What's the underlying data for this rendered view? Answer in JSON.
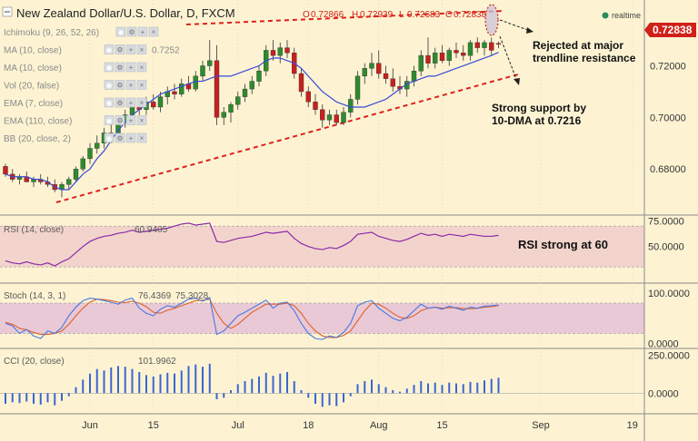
{
  "title": "New Zealand Dollar/U.S. Dollar, D, FXCM",
  "ohlc": {
    "o_label": "O",
    "o": "0.72866",
    "h_label": "H",
    "h": "0.72939",
    "l_label": "L",
    "l": "0.72683",
    "c_label": "C",
    "c": "0.72838"
  },
  "realtime_label": "realtime",
  "last_price": "0.72838",
  "indicator_rows": [
    {
      "label": "Ichimoku (9, 26, 52, 26)",
      "value": ""
    },
    {
      "label": "MA (10, close)",
      "value": "0.7252"
    },
    {
      "label": "MA (10, close)",
      "value": ""
    },
    {
      "label": "Vol (20, false)",
      "value": ""
    },
    {
      "label": "EMA (7, close)",
      "value": ""
    },
    {
      "label": "EMA (110, close)",
      "value": ""
    },
    {
      "label": "BB (20, close, 2)",
      "value": ""
    }
  ],
  "annotations": {
    "resistance": [
      "Rejected at major",
      "trendline resistance"
    ],
    "support": [
      "Strong support by",
      "10-DMA at 0.7216"
    ],
    "rsi": "RSI strong at 60"
  },
  "colors": {
    "background": "#fdf3d3",
    "up_candle": "#2e8b2e",
    "down_candle": "#c8201d",
    "ma_line": "#3a4bd6",
    "trendline": "#e0201a",
    "rsi_line": "#8a2aa8",
    "stoch_k": "#4a78e0",
    "stoch_d": "#e0602a",
    "cci_bars": "#3a66d0",
    "price_tag": "#d0201a",
    "rsi_band": "#f2d4cc",
    "stoch_band": "#e9c9d6"
  },
  "chart_data": [
    {
      "type": "candlestick",
      "title": "New Zealand Dollar/U.S. Dollar, D, FXCM",
      "x_ticks": [
        "Jun",
        "15",
        "Jul",
        "18",
        "Aug",
        "15",
        "Sep",
        "19"
      ],
      "y_ticks": [
        "0.72000",
        "0.70000",
        "0.68000"
      ],
      "ylim": [
        0.6625,
        0.7455
      ],
      "series": [
        {
          "name": "MA (10, close)",
          "values": [
            0.678,
            0.677,
            0.677,
            0.677,
            0.676,
            0.676,
            0.675,
            0.673,
            0.672,
            0.672,
            0.675,
            0.678,
            0.68,
            0.684,
            0.687,
            0.691,
            0.695,
            0.698,
            0.701,
            0.703,
            0.705,
            0.707,
            0.709,
            0.71,
            0.711,
            0.712,
            0.713,
            0.714,
            0.714,
            0.715,
            0.716,
            0.716,
            0.716,
            0.717,
            0.718,
            0.719,
            0.72,
            0.722,
            0.723,
            0.723,
            0.722,
            0.721,
            0.719,
            0.716,
            0.713,
            0.71,
            0.708,
            0.706,
            0.705,
            0.704,
            0.704,
            0.704,
            0.705,
            0.706,
            0.707,
            0.709,
            0.711,
            0.713,
            0.714,
            0.715,
            0.716,
            0.716,
            0.717,
            0.718,
            0.719,
            0.72,
            0.721,
            0.722,
            0.723,
            0.724,
            0.7252
          ]
        }
      ],
      "candles": [
        [
          0.681,
          0.682,
          0.677,
          0.678
        ],
        [
          0.678,
          0.68,
          0.675,
          0.676
        ],
        [
          0.676,
          0.678,
          0.674,
          0.677
        ],
        [
          0.677,
          0.679,
          0.675,
          0.675
        ],
        [
          0.675,
          0.677,
          0.673,
          0.676
        ],
        [
          0.676,
          0.678,
          0.674,
          0.675
        ],
        [
          0.675,
          0.677,
          0.673,
          0.674
        ],
        [
          0.674,
          0.676,
          0.671,
          0.672
        ],
        [
          0.672,
          0.675,
          0.669,
          0.674
        ],
        [
          0.674,
          0.677,
          0.672,
          0.676
        ],
        [
          0.676,
          0.681,
          0.675,
          0.68
        ],
        [
          0.68,
          0.685,
          0.679,
          0.684
        ],
        [
          0.684,
          0.69,
          0.682,
          0.688
        ],
        [
          0.688,
          0.693,
          0.686,
          0.69
        ],
        [
          0.69,
          0.696,
          0.688,
          0.694
        ],
        [
          0.694,
          0.698,
          0.69,
          0.692
        ],
        [
          0.692,
          0.7,
          0.691,
          0.698
        ],
        [
          0.698,
          0.703,
          0.696,
          0.701
        ],
        [
          0.701,
          0.706,
          0.699,
          0.704
        ],
        [
          0.704,
          0.707,
          0.701,
          0.703
        ],
        [
          0.703,
          0.708,
          0.701,
          0.706
        ],
        [
          0.706,
          0.709,
          0.703,
          0.704
        ],
        [
          0.704,
          0.71,
          0.702,
          0.708
        ],
        [
          0.708,
          0.712,
          0.705,
          0.71
        ],
        [
          0.71,
          0.713,
          0.707,
          0.709
        ],
        [
          0.709,
          0.715,
          0.708,
          0.713
        ],
        [
          0.713,
          0.716,
          0.71,
          0.711
        ],
        [
          0.711,
          0.718,
          0.71,
          0.716
        ],
        [
          0.716,
          0.722,
          0.714,
          0.72
        ],
        [
          0.72,
          0.73,
          0.718,
          0.722
        ],
        [
          0.722,
          0.728,
          0.697,
          0.7
        ],
        [
          0.7,
          0.704,
          0.697,
          0.702
        ],
        [
          0.702,
          0.706,
          0.698,
          0.705
        ],
        [
          0.705,
          0.71,
          0.703,
          0.708
        ],
        [
          0.708,
          0.713,
          0.706,
          0.711
        ],
        [
          0.711,
          0.716,
          0.709,
          0.714
        ],
        [
          0.714,
          0.72,
          0.712,
          0.718
        ],
        [
          0.718,
          0.728,
          0.716,
          0.726
        ],
        [
          0.726,
          0.73,
          0.722,
          0.724
        ],
        [
          0.724,
          0.729,
          0.721,
          0.727
        ],
        [
          0.727,
          0.73,
          0.723,
          0.725
        ],
        [
          0.725,
          0.727,
          0.715,
          0.717
        ],
        [
          0.717,
          0.719,
          0.708,
          0.71
        ],
        [
          0.71,
          0.712,
          0.704,
          0.706
        ],
        [
          0.706,
          0.709,
          0.701,
          0.703
        ],
        [
          0.703,
          0.705,
          0.696,
          0.699
        ],
        [
          0.699,
          0.703,
          0.697,
          0.701
        ],
        [
          0.701,
          0.703,
          0.697,
          0.698
        ],
        [
          0.698,
          0.704,
          0.697,
          0.702
        ],
        [
          0.702,
          0.709,
          0.7,
          0.707
        ],
        [
          0.707,
          0.718,
          0.705,
          0.716
        ],
        [
          0.716,
          0.721,
          0.713,
          0.719
        ],
        [
          0.719,
          0.725,
          0.716,
          0.721
        ],
        [
          0.721,
          0.726,
          0.715,
          0.717
        ],
        [
          0.717,
          0.72,
          0.713,
          0.715
        ],
        [
          0.715,
          0.719,
          0.71,
          0.712
        ],
        [
          0.712,
          0.716,
          0.709,
          0.711
        ],
        [
          0.711,
          0.716,
          0.708,
          0.714
        ],
        [
          0.714,
          0.72,
          0.712,
          0.718
        ],
        [
          0.718,
          0.726,
          0.716,
          0.724
        ],
        [
          0.724,
          0.731,
          0.719,
          0.721
        ],
        [
          0.721,
          0.727,
          0.719,
          0.725
        ],
        [
          0.725,
          0.728,
          0.721,
          0.722
        ],
        [
          0.722,
          0.727,
          0.72,
          0.726
        ],
        [
          0.726,
          0.729,
          0.723,
          0.725
        ],
        [
          0.725,
          0.728,
          0.722,
          0.724
        ],
        [
          0.724,
          0.73,
          0.722,
          0.729
        ],
        [
          0.729,
          0.731,
          0.725,
          0.727
        ],
        [
          0.727,
          0.73,
          0.724,
          0.729
        ],
        [
          0.729,
          0.731,
          0.724,
          0.726
        ],
        [
          0.72866,
          0.72939,
          0.72683,
          0.72838
        ]
      ],
      "annotations": [
        {
          "text": "Rejected at major trendline resistance"
        },
        {
          "text": "Strong support by 10-DMA at 0.7216"
        }
      ]
    },
    {
      "type": "line",
      "title": "RSI (14, close)",
      "value_label": "60.9405",
      "y_ticks": [
        "75.0000",
        "50.0000"
      ],
      "ylim": [
        15,
        80
      ],
      "band": [
        30,
        70
      ],
      "values": [
        36,
        34,
        33,
        35,
        33,
        32,
        34,
        31,
        35,
        38,
        44,
        50,
        55,
        58,
        60,
        61,
        63,
        64,
        66,
        64,
        65,
        66,
        67,
        68,
        70,
        72,
        73,
        71,
        72,
        73,
        55,
        54,
        56,
        58,
        59,
        60,
        62,
        64,
        63,
        64,
        65,
        58,
        53,
        50,
        48,
        47,
        49,
        48,
        51,
        55,
        62,
        63,
        64,
        60,
        58,
        56,
        55,
        57,
        60,
        63,
        61,
        62,
        60,
        62,
        61,
        60,
        62,
        61,
        60,
        60,
        60.9405
      ]
    },
    {
      "type": "line",
      "title": "Stoch (14, 3, 1)",
      "value_labels": [
        "76.4369",
        "75.3028"
      ],
      "y_ticks": [
        "100.0000",
        "0.0000"
      ],
      "ylim": [
        -8,
        118
      ],
      "band": [
        20,
        80
      ],
      "series": [
        {
          "name": "%K",
          "values": [
            40,
            35,
            20,
            28,
            15,
            10,
            25,
            20,
            32,
            55,
            72,
            85,
            90,
            88,
            85,
            82,
            78,
            86,
            90,
            70,
            60,
            55,
            68,
            75,
            72,
            80,
            88,
            90,
            84,
            91,
            18,
            25,
            40,
            55,
            62,
            70,
            78,
            86,
            70,
            80,
            82,
            65,
            40,
            20,
            10,
            8,
            15,
            12,
            22,
            40,
            75,
            82,
            85,
            70,
            60,
            50,
            45,
            52,
            65,
            78,
            70,
            72,
            68,
            74,
            70,
            66,
            72,
            70,
            74,
            75,
            76.4369
          ]
        },
        {
          "name": "%D",
          "values": [
            42,
            38,
            30,
            27,
            22,
            18,
            18,
            20,
            25,
            38,
            55,
            70,
            82,
            88,
            87,
            85,
            82,
            81,
            84,
            80,
            73,
            62,
            60,
            66,
            70,
            75,
            80,
            85,
            86,
            88,
            60,
            40,
            30,
            38,
            50,
            62,
            70,
            78,
            78,
            78,
            80,
            75,
            60,
            40,
            25,
            15,
            12,
            12,
            16,
            25,
            45,
            65,
            80,
            78,
            70,
            60,
            52,
            50,
            55,
            65,
            70,
            72,
            70,
            71,
            71,
            69,
            69,
            70,
            72,
            73,
            75.3028
          ]
        }
      ]
    },
    {
      "type": "bar",
      "title": "CCI (20, close)",
      "value_label": "101.9962",
      "y_ticks": [
        "250.0000",
        "0.0000"
      ],
      "ylim": [
        -130,
        290
      ],
      "values": [
        -70,
        -60,
        -65,
        -55,
        -70,
        -75,
        -60,
        -80,
        -50,
        -20,
        40,
        90,
        130,
        160,
        150,
        170,
        180,
        175,
        160,
        140,
        120,
        110,
        125,
        135,
        130,
        150,
        180,
        190,
        175,
        195,
        -40,
        -30,
        20,
        60,
        80,
        95,
        110,
        135,
        115,
        130,
        140,
        80,
        20,
        -30,
        -70,
        -90,
        -80,
        -85,
        -60,
        -20,
        60,
        80,
        90,
        60,
        40,
        20,
        10,
        30,
        55,
        80,
        65,
        70,
        55,
        70,
        65,
        60,
        75,
        70,
        85,
        95,
        101.9962
      ]
    }
  ]
}
